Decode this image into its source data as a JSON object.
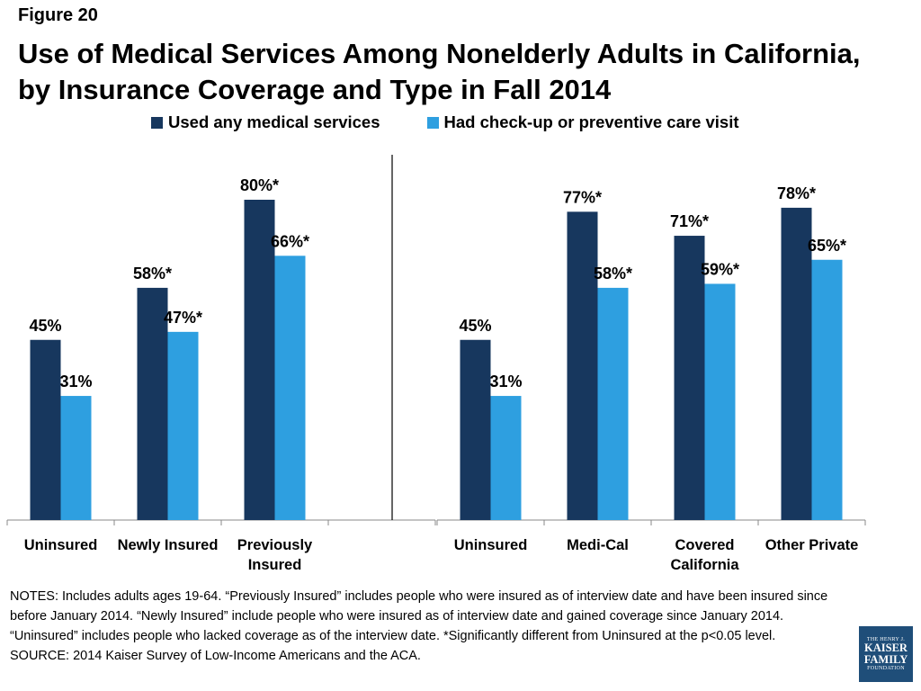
{
  "figure_label": "Figure 20",
  "title_line1": "Use of Medical Services Among Nonelderly Adults in California,",
  "title_line2": "by Insurance Coverage and Type in Fall 2014",
  "colors": {
    "series_dark": "#17375e",
    "series_light": "#2e9fe0",
    "axis": "#000000"
  },
  "chart_data": {
    "type": "bar",
    "y_range": [
      0,
      100
    ],
    "series": [
      {
        "name": "Used any medical services",
        "color": "#17375e"
      },
      {
        "name": "Had check-up or preventive care visit",
        "color": "#2e9fe0"
      }
    ],
    "groups": [
      {
        "categories": [
          {
            "label": [
              "Uninsured"
            ],
            "values": [
              45,
              31
            ],
            "value_labels": [
              "45%",
              "31%"
            ]
          },
          {
            "label": [
              "Newly Insured"
            ],
            "values": [
              58,
              47
            ],
            "value_labels": [
              "58%*",
              "47%*"
            ]
          },
          {
            "label": [
              "Previously",
              "Insured"
            ],
            "values": [
              80,
              66
            ],
            "value_labels": [
              "80%*",
              "66%*"
            ]
          }
        ]
      },
      {
        "categories": [
          {
            "label": [
              "Uninsured"
            ],
            "values": [
              45,
              31
            ],
            "value_labels": [
              "45%",
              "31%"
            ]
          },
          {
            "label": [
              "Medi-Cal"
            ],
            "values": [
              77,
              58
            ],
            "value_labels": [
              "77%*",
              "58%*"
            ]
          },
          {
            "label": [
              "Covered",
              "California"
            ],
            "values": [
              71,
              59
            ],
            "value_labels": [
              "71%*",
              "59%*"
            ]
          },
          {
            "label": [
              "Other Private"
            ],
            "values": [
              78,
              65
            ],
            "value_labels": [
              "78%*",
              "65%*"
            ]
          }
        ]
      }
    ]
  },
  "notes": [
    "NOTES: Includes adults ages 19-64. “Previously Insured” includes people who were insured as of interview date and have been insured since before January 2014. “Newly Insured” include people who were insured as of interview date and gained coverage since January 2014. “Uninsured” includes people who lacked coverage as of the interview date. *Significantly different from Uninsured at the p<0.05 level.",
    "SOURCE: 2014 Kaiser Survey of Low-Income Americans and the ACA."
  ],
  "logo": {
    "line1": "THE HENRY J.",
    "line2": "KAISER",
    "line3": "FAMILY",
    "line4": "FOUNDATION"
  }
}
